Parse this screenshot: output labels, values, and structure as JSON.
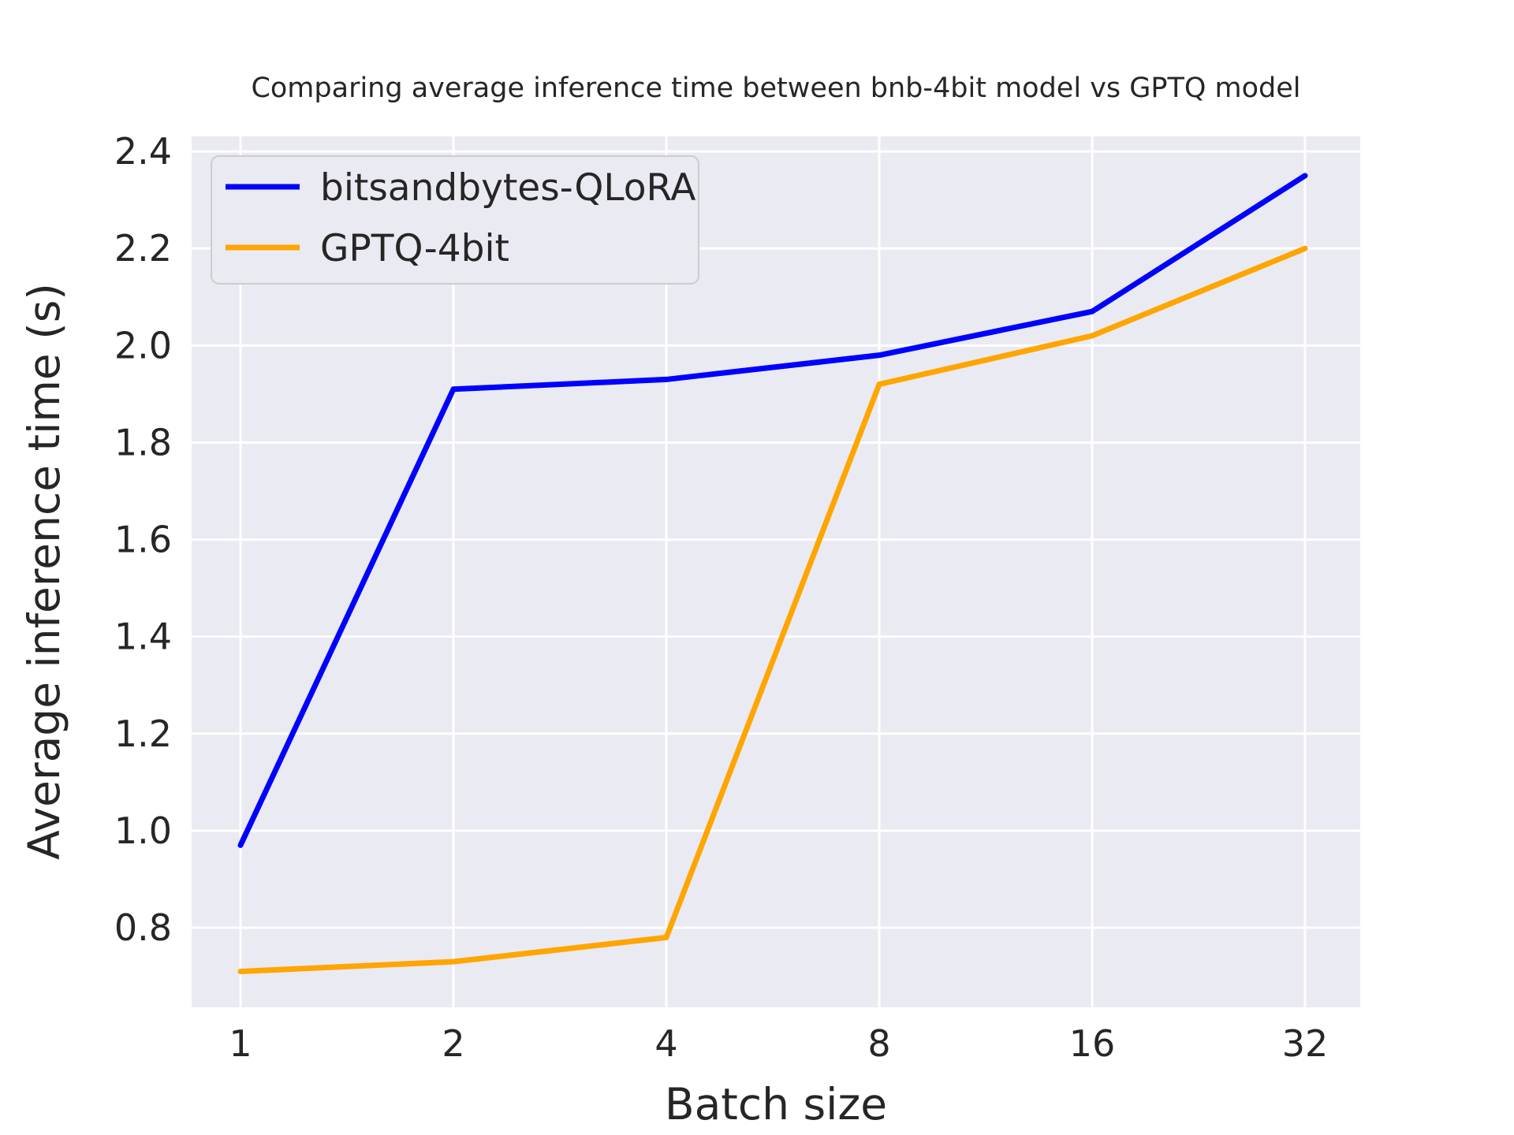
{
  "chart_data": {
    "type": "line",
    "title": "Comparing average inference time between bnb-4bit model vs GPTQ model",
    "xlabel": "Batch size",
    "ylabel": "Average inference time (s)",
    "categories": [
      "1",
      "2",
      "4",
      "8",
      "16",
      "32"
    ],
    "series": [
      {
        "name": "bitsandbytes-QLoRA",
        "color": "#0000ff",
        "values": [
          0.97,
          1.91,
          1.93,
          1.98,
          2.07,
          2.35
        ]
      },
      {
        "name": "GPTQ-4bit",
        "color": "#ffa500",
        "values": [
          0.71,
          0.73,
          0.78,
          1.92,
          2.02,
          2.2
        ]
      }
    ],
    "yticks": [
      0.8,
      1.0,
      1.2,
      1.4,
      1.6,
      1.8,
      2.0,
      2.2,
      2.4
    ],
    "ylim": [
      0.636,
      2.431
    ],
    "grid": "on",
    "legend_position": "upper-left",
    "plot_background": "#eaeaf2",
    "grid_color": "#ffffff",
    "text_color": "#262626"
  }
}
